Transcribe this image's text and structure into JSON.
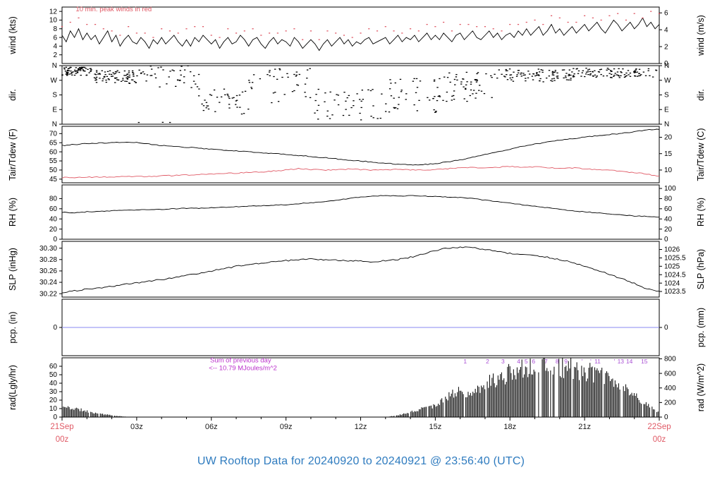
{
  "app": {
    "title": "UW Rooftop Data for 20240920  to  20240921 @ 23:56:40  (UTC)",
    "title_color": "#2e7bbf"
  },
  "colors": {
    "line": "#000000",
    "frame": "#000000",
    "peak_red": "#e05a66",
    "dew_red": "#e05a66",
    "date_red": "#e05a66",
    "magenta": "#bb33cc",
    "mj_marker": "#a94fd4",
    "pcp_blue": "#8888f0",
    "x_label": "#1a1a1a"
  },
  "x_axis": {
    "hours": 24,
    "major_labels": [
      {
        "t": 3,
        "label": "03z"
      },
      {
        "t": 6,
        "label": "06z"
      },
      {
        "t": 9,
        "label": "09z"
      },
      {
        "t": 12,
        "label": "12z"
      },
      {
        "t": 15,
        "label": "15z"
      },
      {
        "t": 18,
        "label": "18z"
      },
      {
        "t": 21,
        "label": "21z"
      }
    ],
    "start_label": {
      "line1": "21Sep",
      "line2": "00z"
    },
    "end_label": {
      "line1": "22Sep",
      "line2": "00z"
    }
  },
  "chart_data": [
    {
      "id": "wind",
      "type": "line",
      "ylabel_left": "wind (kts)",
      "ylabel_right": "wind (m/s)",
      "ylim": [
        0,
        13
      ],
      "yticks_left": [
        [
          2,
          "2"
        ],
        [
          4,
          "4"
        ],
        [
          6,
          "6"
        ],
        [
          8,
          "8"
        ],
        [
          10,
          "10"
        ],
        [
          12,
          "12"
        ]
      ],
      "yticks_right": [
        [
          0,
          "0"
        ],
        [
          3.889,
          "2"
        ],
        [
          7.778,
          "4"
        ],
        [
          11.663,
          "6"
        ]
      ],
      "annotations": [
        {
          "text": "10 min. peak winds in red",
          "t": 0.55,
          "v": 12.0,
          "color": "#e05a66",
          "anchor": "start",
          "size": 9.5
        }
      ],
      "series": [
        {
          "name": "wind_kts",
          "style": "line",
          "color": "#000000",
          "width": 0.9,
          "jitter": 0,
          "values": [
            6.5,
            5.0,
            7.5,
            6.0,
            8.0,
            5.5,
            7.0,
            5.5,
            6.5,
            4.5,
            6.0,
            7.5,
            5.0,
            6.5,
            4.0,
            5.5,
            6.5,
            5.0,
            4.5,
            6.0,
            5.0,
            3.5,
            5.5,
            4.5,
            6.0,
            4.5,
            5.5,
            6.5,
            5.0,
            4.0,
            5.5,
            4.0,
            6.0,
            5.0,
            6.5,
            5.5,
            4.5,
            5.5,
            3.5,
            5.0,
            6.0,
            4.5,
            5.0,
            6.5,
            5.5,
            4.0,
            5.5,
            6.0,
            4.5,
            3.5,
            5.0,
            6.0,
            4.5,
            5.5,
            5.0,
            4.0,
            6.0,
            5.0,
            3.5,
            4.5,
            5.5,
            4.5,
            3.0,
            4.5,
            5.5,
            4.0,
            5.0,
            6.0,
            4.5,
            5.5,
            4.0,
            5.0,
            4.5,
            5.5,
            6.0,
            4.5,
            5.0,
            5.5,
            6.0,
            4.5,
            5.5,
            6.5,
            5.0,
            6.0,
            5.5,
            6.5,
            5.0,
            6.0,
            7.0,
            5.5,
            6.5,
            5.5,
            7.0,
            6.0,
            5.0,
            6.5,
            7.0,
            5.5,
            6.5,
            7.5,
            6.0,
            5.5,
            6.5,
            7.5,
            6.0,
            7.0,
            5.5,
            6.5,
            7.0,
            6.0,
            7.5,
            6.5,
            8.0,
            6.5,
            7.5,
            8.5,
            6.5,
            7.5,
            9.0,
            7.0,
            8.0,
            6.5,
            7.5,
            8.5,
            7.0,
            8.0,
            9.0,
            7.5,
            8.5,
            9.5,
            8.0,
            7.0,
            8.5,
            10.0,
            9.0,
            7.5,
            8.5,
            9.5,
            8.0,
            9.0,
            10.5,
            8.5,
            9.5,
            8.0,
            9.0
          ]
        },
        {
          "name": "peak_wind_kts",
          "style": "dots",
          "color": "#e05a66",
          "values": [
            8.5,
            9.5,
            10.5,
            9.0,
            9.0,
            8.0,
            7.5,
            6.5,
            8.5,
            7.0,
            7.0,
            6.0,
            8.0,
            7.5,
            7.0,
            8.0,
            8.5,
            8.5,
            6.5,
            6.0,
            8.0,
            7.0,
            7.5,
            8.0,
            6.5,
            7.0,
            7.0,
            7.5,
            8.0,
            5.5,
            7.5,
            5.5,
            7.5,
            7.0,
            6.5,
            6.0,
            7.0,
            8.0,
            7.5,
            8.5,
            7.5,
            7.0,
            8.0,
            7.5,
            9.0,
            8.5,
            9.5,
            7.5,
            9.0,
            9.0,
            8.5,
            8.5,
            8.0,
            7.5,
            9.0,
            9.0,
            9.5,
            10.0,
            9.0,
            11.0,
            10.5,
            9.5,
            9.5,
            11.0,
            10.5,
            10.0,
            11.0,
            11.5,
            10.0,
            11.5,
            10.5,
            12.0,
            11.5
          ]
        }
      ]
    },
    {
      "id": "dir",
      "type": "scatter",
      "ylabel_left": "dir.",
      "ylabel_right": "dir.",
      "ylim": [
        0,
        360
      ],
      "yticks_left": [
        [
          360,
          "N"
        ],
        [
          270,
          "W"
        ],
        [
          180,
          "S"
        ],
        [
          90,
          "E"
        ],
        [
          0,
          "N"
        ]
      ],
      "yticks_right": [
        [
          360,
          "N"
        ],
        [
          270,
          "W"
        ],
        [
          180,
          "S"
        ],
        [
          90,
          "E"
        ],
        [
          0,
          "N"
        ]
      ],
      "scatter": {
        "seed": 7,
        "point": [
          2.4,
          1.3
        ],
        "segments": [
          {
            "t0": 0.0,
            "t1": 1.2,
            "center": 325,
            "spread": 25,
            "n": 70
          },
          {
            "t0": 1.2,
            "t1": 3.0,
            "center": 290,
            "spread": 40,
            "n": 80
          },
          {
            "t0": 3.0,
            "t1": 5.5,
            "center": 300,
            "spread": 80,
            "n": 45
          },
          {
            "t0": 5.5,
            "t1": 7.5,
            "center": 140,
            "spread": 80,
            "n": 40
          },
          {
            "t0": 7.5,
            "t1": 10.0,
            "center": 240,
            "spread": 110,
            "n": 40
          },
          {
            "t0": 10.0,
            "t1": 13.0,
            "center": 120,
            "spread": 100,
            "n": 45
          },
          {
            "t0": 13.0,
            "t1": 15.5,
            "center": 180,
            "spread": 110,
            "n": 50
          },
          {
            "t0": 15.5,
            "t1": 17.5,
            "center": 230,
            "spread": 90,
            "n": 50
          },
          {
            "t0": 17.5,
            "t1": 20.5,
            "center": 300,
            "spread": 40,
            "n": 90
          },
          {
            "t0": 20.5,
            "t1": 24.0,
            "center": 315,
            "spread": 30,
            "n": 100
          }
        ]
      }
    },
    {
      "id": "temp",
      "type": "line",
      "ylabel_left": "Tair/Tdew (F)",
      "ylabel_right": "Tair/Tdew (C)",
      "ylim": [
        43,
        74
      ],
      "yticks_left": [
        [
          45,
          "45"
        ],
        [
          50,
          "50"
        ],
        [
          55,
          "55"
        ],
        [
          60,
          "60"
        ],
        [
          65,
          "65"
        ],
        [
          70,
          "70"
        ]
      ],
      "yticks_right": [
        [
          50,
          "10"
        ],
        [
          59,
          "15"
        ],
        [
          68,
          "20"
        ]
      ],
      "series": [
        {
          "name": "tair_f",
          "style": "line",
          "color": "#000000",
          "width": 0.9,
          "jitter": 0.25,
          "values": [
            63.5,
            64.0,
            64.5,
            64.8,
            65.0,
            65.3,
            65.0,
            64.3,
            63.5,
            63.0,
            62.5,
            62.0,
            61.5,
            61.0,
            60.5,
            60.0,
            59.5,
            59.0,
            58.5,
            58.0,
            57.5,
            56.8,
            56.2,
            55.5,
            55.0,
            54.3,
            53.8,
            53.2,
            52.8,
            53.0,
            53.5,
            54.5,
            55.5,
            57.0,
            58.5,
            60.0,
            61.5,
            63.0,
            64.2,
            65.3,
            66.3,
            67.2,
            68.0,
            68.8,
            69.5,
            70.2,
            71.0,
            72.0,
            72.3
          ]
        },
        {
          "name": "tdew_f",
          "style": "line",
          "color": "#e05a66",
          "width": 0.9,
          "jitter": 0.3,
          "values": [
            45.8,
            46.0,
            46.2,
            46.0,
            46.3,
            46.5,
            46.4,
            46.6,
            46.8,
            47.0,
            47.2,
            47.5,
            47.8,
            48.0,
            48.3,
            48.6,
            49.0,
            49.5,
            50.0,
            50.8,
            50.3,
            50.0,
            50.2,
            50.5,
            50.3,
            50.0,
            50.2,
            50.4,
            50.1,
            50.0,
            50.3,
            50.8,
            51.2,
            51.5,
            51.0,
            51.5,
            52.0,
            51.5,
            51.8,
            51.3,
            51.0,
            51.2,
            50.8,
            50.3,
            49.8,
            49.2,
            48.5,
            47.8,
            46.5
          ]
        }
      ]
    },
    {
      "id": "rh",
      "type": "line",
      "ylabel_left": "RH (%)",
      "ylabel_right": "RH (%)",
      "ylim": [
        0,
        107
      ],
      "yticks_left": [
        [
          0,
          "0"
        ],
        [
          20,
          "20"
        ],
        [
          40,
          "40"
        ],
        [
          60,
          "60"
        ],
        [
          80,
          "80"
        ]
      ],
      "yticks_right": [
        [
          0,
          "0"
        ],
        [
          20,
          "20"
        ],
        [
          40,
          "40"
        ],
        [
          60,
          "60"
        ],
        [
          80,
          "80"
        ],
        [
          100,
          "100"
        ]
      ],
      "series": [
        {
          "name": "rh_pct",
          "style": "line",
          "color": "#000000",
          "width": 0.9,
          "jitter": 0.7,
          "values": [
            53,
            52,
            54,
            55,
            56,
            57,
            58,
            58,
            59,
            60,
            61,
            61,
            62,
            63,
            64,
            65,
            66,
            67,
            68,
            70,
            72,
            74,
            77,
            80,
            83,
            85,
            86,
            85,
            86,
            85,
            84,
            83,
            82,
            80,
            77,
            74,
            71,
            68,
            65,
            62,
            59,
            56,
            54,
            52,
            50,
            48,
            46,
            45,
            43
          ]
        }
      ]
    },
    {
      "id": "slp",
      "type": "line",
      "ylabel_left": "SLP (inHg)",
      "ylabel_right": "SLP (hPa)",
      "ylim": [
        30.214,
        30.312
      ],
      "yticks_left": [
        [
          30.22,
          "30.22"
        ],
        [
          30.24,
          "30.24"
        ],
        [
          30.26,
          "30.26"
        ],
        [
          30.28,
          "30.28"
        ],
        [
          30.3,
          "30.30"
        ]
      ],
      "yticks_right": [
        [
          30.2239,
          "1023.5"
        ],
        [
          30.2386,
          "1024"
        ],
        [
          30.2534,
          "1024.5"
        ],
        [
          30.2682,
          "1025"
        ],
        [
          30.2829,
          "1025.5"
        ],
        [
          30.2977,
          "1026"
        ]
      ],
      "series": [
        {
          "name": "slp_inhg",
          "style": "line",
          "color": "#000000",
          "width": 0.9,
          "jitter": 0.0012,
          "values": [
            30.222,
            30.225,
            30.228,
            30.23,
            30.233,
            30.236,
            30.239,
            30.242,
            30.245,
            30.248,
            30.252,
            30.256,
            30.26,
            30.264,
            30.268,
            30.271,
            30.274,
            30.276,
            30.278,
            30.28,
            30.281,
            30.28,
            30.279,
            30.278,
            30.277,
            30.276,
            30.278,
            30.28,
            30.284,
            30.29,
            30.296,
            30.3,
            30.302,
            30.301,
            30.298,
            30.294,
            30.291,
            30.289,
            30.287,
            30.284,
            30.28,
            30.275,
            30.268,
            30.261,
            30.254,
            30.246,
            30.238,
            30.228,
            30.224
          ]
        }
      ]
    },
    {
      "id": "pcp",
      "type": "line",
      "ylabel_left": "pcp. (in)",
      "ylabel_right": "pcp. (mm)",
      "ylim": [
        -1,
        1
      ],
      "yticks_left": [
        [
          0,
          "0"
        ]
      ],
      "yticks_right": [
        [
          0,
          "0"
        ]
      ],
      "series": [
        {
          "name": "precip",
          "style": "line",
          "color": "#8888f0",
          "width": 1,
          "jitter": 0,
          "values": [
            0,
            0
          ]
        }
      ]
    },
    {
      "id": "rad",
      "type": "bars",
      "ylabel_left": "rad(Lgly/hr)",
      "ylabel_right": "rad (W/m^2)",
      "ylim": [
        0,
        70
      ],
      "yticks_left": [
        [
          0,
          "0"
        ],
        [
          10,
          "10"
        ],
        [
          20,
          "20"
        ],
        [
          30,
          "30"
        ],
        [
          40,
          "40"
        ],
        [
          50,
          "50"
        ],
        [
          60,
          "60"
        ]
      ],
      "yticks_right": [
        [
          0,
          "0"
        ],
        [
          17.2,
          "200"
        ],
        [
          34.4,
          "400"
        ],
        [
          51.6,
          "600"
        ],
        [
          68.8,
          "800"
        ]
      ],
      "annotations": [
        {
          "text": "Sum of previous day",
          "t": 5.95,
          "v": 64.5,
          "color": "#bb33cc",
          "anchor": "start",
          "size": 9.5
        },
        {
          "text": "<-- 10.79 MJoules/m^2",
          "t": 5.9,
          "v": 55.5,
          "color": "#bb33cc",
          "anchor": "start",
          "size": 9.5
        }
      ],
      "mj_markers": [
        [
          "1",
          16.2
        ],
        [
          "2",
          17.1
        ],
        [
          "3",
          17.72
        ],
        [
          "4",
          18.35
        ],
        [
          "5",
          18.65
        ],
        [
          "6",
          18.95
        ],
        [
          "7",
          19.45
        ],
        [
          "8",
          19.9
        ],
        [
          "9",
          20.25
        ],
        [
          "'",
          20.9
        ],
        [
          "'",
          21.25
        ],
        [
          "11",
          21.52
        ],
        [
          "'",
          22.2
        ],
        [
          "13",
          22.45
        ],
        [
          "14",
          22.8
        ],
        [
          "15",
          23.4
        ]
      ],
      "bars": {
        "seed": 11,
        "step": 0.048,
        "gap_prob_day": 0.08,
        "gap_prob_late": 0.22,
        "late_t": 19,
        "envelope": [
          12,
          10,
          7,
          4,
          2,
          0.5,
          0,
          0,
          0,
          0,
          0,
          0,
          0,
          0,
          0,
          0,
          0,
          0,
          0,
          0,
          0,
          0,
          0,
          0,
          0,
          0,
          0,
          2,
          6,
          10,
          14,
          24,
          30,
          26,
          38,
          45,
          52,
          58,
          63,
          62,
          60,
          57,
          54,
          50,
          44,
          36,
          26,
          14,
          6
        ]
      }
    }
  ]
}
